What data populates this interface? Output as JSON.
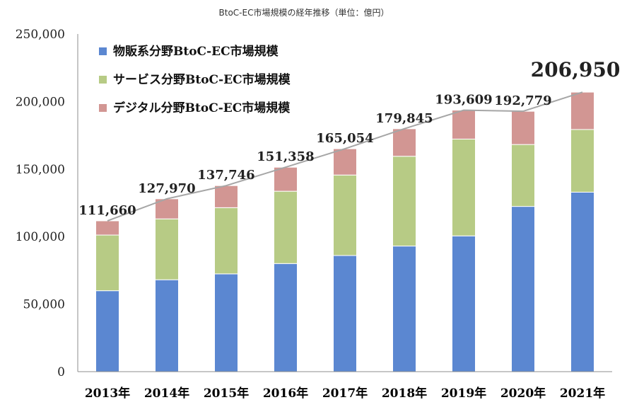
{
  "chart_data": {
    "type": "bar",
    "stacked": true,
    "title": "BtoC-EC市場規模の経年推移（単位：億円）",
    "categories": [
      "2013年",
      "2014年",
      "2015年",
      "2016年",
      "2017年",
      "2018年",
      "2019年",
      "2020年",
      "2021年"
    ],
    "series": [
      {
        "name": "物販系分野BtoC-EC市場規模",
        "color": "#5b87d1",
        "values": [
          59931,
          68043,
          72398,
          80043,
          86008,
          92992,
          100515,
          122333,
          132865
        ]
      },
      {
        "name": "サービス分野BtoC-EC市場規模",
        "color": "#b7cb85",
        "values": [
          41204,
          45057,
          49014,
          53532,
          59568,
          66471,
          71672,
          45832,
          46424
        ]
      },
      {
        "name": "デジタル分野BtoC-EC市場規模",
        "color": "#d29693",
        "values": [
          10525,
          14870,
          16334,
          17783,
          19478,
          20382,
          21422,
          24614,
          27661
        ]
      }
    ],
    "totals": [
      111660,
      127970,
      137746,
      151358,
      165054,
      179845,
      193609,
      192779,
      206950
    ],
    "total_labels": [
      "111,660",
      "127,970",
      "137,746",
      "151,358",
      "165,054",
      "179,845",
      "193,609",
      "192,779",
      "206,950"
    ],
    "ylim": [
      0,
      250000
    ],
    "yticks": [
      0,
      50000,
      100000,
      150000,
      200000,
      250000
    ],
    "ytick_labels": [
      "0",
      "50,000",
      "100,000",
      "150,000",
      "200,000",
      "250,000"
    ],
    "total_line_color": "#a6a6a6",
    "legend_position": "top-left",
    "grid": false
  }
}
